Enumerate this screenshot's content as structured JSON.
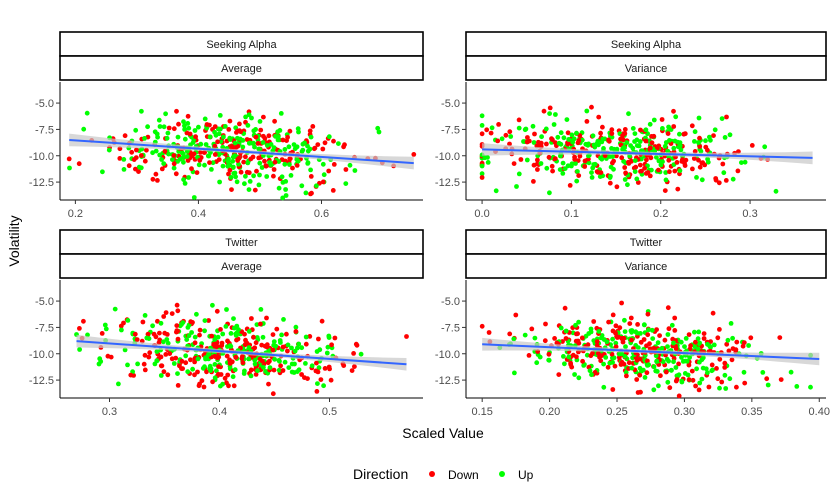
{
  "chart_data": {
    "type": "scatter",
    "xlabel": "Scaled Value",
    "ylabel": "Volatility",
    "legend": {
      "title": "Direction",
      "placement": "bottom",
      "entries": [
        {
          "name": "Down",
          "color": "#ff0000"
        },
        {
          "name": "Up",
          "color": "#00ff00"
        }
      ]
    },
    "colors": {
      "Down": "#ff0000",
      "Up": "#00ff00",
      "trend": "#3366ff",
      "band": "#c8c8c8"
    },
    "panels": [
      {
        "source": "Seeking Alpha",
        "measure": "Average",
        "xlim": [
          0.175,
          0.765
        ],
        "ylim": [
          -14.2,
          -3.0
        ],
        "xticks": [
          0.2,
          0.4,
          0.6
        ],
        "xtick_labels": [
          "0.2",
          "0.4",
          "0.6"
        ],
        "yticks": [
          -5.0,
          -7.5,
          -10.0,
          -12.5
        ],
        "ytick_labels": [
          "-5.0",
          "-7.5",
          "-10.0",
          "-12.5"
        ],
        "trend": {
          "x": [
            0.19,
            0.75
          ],
          "y": [
            -8.5,
            -10.7
          ]
        },
        "x_range": [
          0.19,
          0.75
        ],
        "x_mean": 0.46,
        "x_sd": 0.1,
        "n_points": 480,
        "seed": 11
      },
      {
        "source": "Seeking Alpha",
        "measure": "Variance",
        "xlim": [
          -0.018,
          0.385
        ],
        "ylim": [
          -14.2,
          -3.0
        ],
        "xticks": [
          0.0,
          0.1,
          0.2,
          0.3
        ],
        "xtick_labels": [
          "0.0",
          "0.1",
          "0.2",
          "0.3"
        ],
        "yticks": [
          -5.0,
          -7.5,
          -10.0,
          -12.5
        ],
        "ytick_labels": [
          "-5.0",
          "-7.5",
          "-10.0",
          "-12.5"
        ],
        "trend": {
          "x": [
            0.0,
            0.37
          ],
          "y": [
            -9.4,
            -10.2
          ]
        },
        "x_range": [
          0.0,
          0.37
        ],
        "x_mean": 0.15,
        "x_sd": 0.07,
        "n_points": 480,
        "seed": 23
      },
      {
        "source": "Twitter",
        "measure": "Average",
        "xlim": [
          0.255,
          0.585
        ],
        "ylim": [
          -14.2,
          -3.0
        ],
        "xticks": [
          0.3,
          0.4,
          0.5
        ],
        "xtick_labels": [
          "0.3",
          "0.4",
          "0.5"
        ],
        "yticks": [
          -5.0,
          -7.5,
          -10.0,
          -12.5
        ],
        "ytick_labels": [
          "-5.0",
          "-7.5",
          "-10.0",
          "-12.5"
        ],
        "trend": {
          "x": [
            0.27,
            0.57
          ],
          "y": [
            -8.8,
            -11.0
          ]
        },
        "x_range": [
          0.27,
          0.57
        ],
        "x_mean": 0.41,
        "x_sd": 0.055,
        "n_points": 480,
        "seed": 37
      },
      {
        "source": "Twitter",
        "measure": "Variance",
        "xlim": [
          0.138,
          0.405
        ],
        "ylim": [
          -14.2,
          -3.0
        ],
        "xticks": [
          0.15,
          0.2,
          0.25,
          0.3,
          0.35,
          0.4
        ],
        "xtick_labels": [
          "0.15",
          "0.20",
          "0.25",
          "0.30",
          "0.35",
          "0.40"
        ],
        "yticks": [
          -5.0,
          -7.5,
          -10.0,
          -12.5
        ],
        "ytick_labels": [
          "-5.0",
          "-7.5",
          "-10.0",
          "-12.5"
        ],
        "trend": {
          "x": [
            0.15,
            0.4
          ],
          "y": [
            -9.1,
            -10.5
          ]
        },
        "x_range": [
          0.15,
          0.4
        ],
        "x_mean": 0.27,
        "x_sd": 0.045,
        "n_points": 480,
        "seed": 53
      }
    ]
  }
}
